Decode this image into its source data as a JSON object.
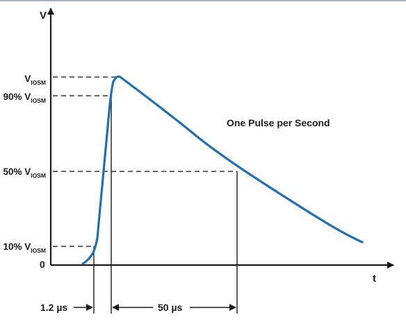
{
  "diagram": {
    "y_axis_label": "V",
    "x_axis_label": "t",
    "origin_label": "0",
    "annotation": "One Pulse per Second",
    "levels": {
      "peak": {
        "prefix": "V",
        "sub": "IOSM"
      },
      "p90": {
        "prefix": "90% V",
        "sub": "IOSM"
      },
      "p50": {
        "prefix": "50% V",
        "sub": "IOSM"
      },
      "p10": {
        "prefix": "10% V",
        "sub": "IOSM"
      }
    },
    "rise_time_label": "1.2 µs",
    "decay_time_label": "50 µs",
    "colors": {
      "curve": "#1f6fb4",
      "axes": "#1a1a1a",
      "guides": "#333333",
      "top_rule": "#4a6f8f"
    }
  }
}
